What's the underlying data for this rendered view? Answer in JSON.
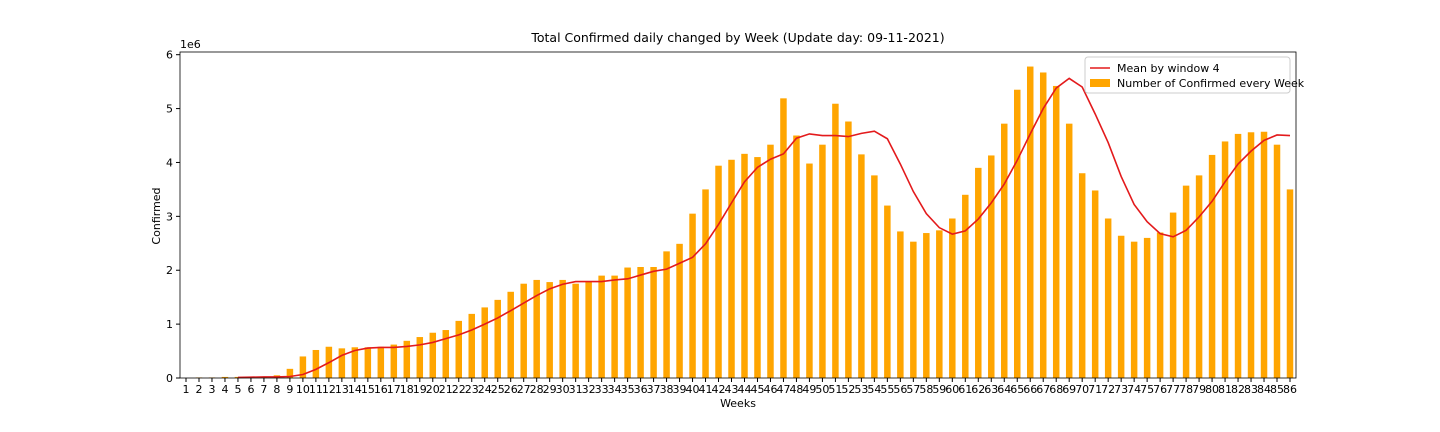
{
  "chart_data": {
    "type": "bar_line",
    "title": "Total Confirmed daily changed by Week (Update day: 09-11-2021)",
    "x_label": "Weeks",
    "y_label": "Confirmed",
    "y_offset": "1e6",
    "categories": [
      "1",
      "2",
      "3",
      "4",
      "5",
      "6",
      "7",
      "8",
      "9",
      "10",
      "11",
      "12",
      "13",
      "14",
      "15",
      "16",
      "17",
      "18",
      "19",
      "20",
      "21",
      "22",
      "23",
      "24",
      "25",
      "26",
      "27",
      "28",
      "29",
      "30",
      "31",
      "32",
      "33",
      "34",
      "35",
      "36",
      "37",
      "38",
      "39",
      "40",
      "41",
      "42",
      "43",
      "44",
      "45",
      "46",
      "47",
      "48",
      "49",
      "50",
      "51",
      "52",
      "53",
      "54",
      "55",
      "56",
      "57",
      "58",
      "59",
      "60",
      "61",
      "62",
      "63",
      "64",
      "65",
      "66",
      "67",
      "68",
      "69",
      "70",
      "71",
      "72",
      "73",
      "74",
      "75",
      "76",
      "77",
      "78",
      "79",
      "80",
      "81",
      "82",
      "83",
      "84",
      "85",
      "86"
    ],
    "series": [
      {
        "name": "Mean by window 4",
        "color": "#e31a1c",
        "kind": "line",
        "values": [
          null,
          null,
          null,
          null,
          0.01,
          0.015,
          0.02,
          0.02,
          0.028,
          0.065,
          0.16,
          0.285,
          0.42,
          0.51,
          0.555,
          0.568,
          0.568,
          0.585,
          0.615,
          0.66,
          0.73,
          0.8,
          0.89,
          1.0,
          1.115,
          1.25,
          1.39,
          1.53,
          1.655,
          1.74,
          1.79,
          1.79,
          1.79,
          1.82,
          1.84,
          1.91,
          1.98,
          2.02,
          2.13,
          2.24,
          2.49,
          2.85,
          3.25,
          3.64,
          3.91,
          4.06,
          4.16,
          4.45,
          4.53,
          4.5,
          4.5,
          4.48,
          4.54,
          4.58,
          4.44,
          3.97,
          3.46,
          3.05,
          2.79,
          2.67,
          2.73,
          2.95,
          3.25,
          3.6,
          4.04,
          4.53,
          5.0,
          5.38,
          5.56,
          5.4,
          4.9,
          4.37,
          3.74,
          3.22,
          2.9,
          2.68,
          2.62,
          2.74,
          2.99,
          3.28,
          3.64,
          3.97,
          4.21,
          4.41,
          4.51,
          4.5
        ]
      },
      {
        "name": "Number of Confirmed every Week",
        "color": "#ffa500",
        "kind": "bar",
        "values": [
          0,
          0.01,
          0.01,
          0.02,
          0.02,
          0.02,
          0.02,
          0.05,
          0.17,
          0.4,
          0.52,
          0.58,
          0.55,
          0.57,
          0.57,
          0.58,
          0.62,
          0.69,
          0.76,
          0.84,
          0.89,
          1.06,
          1.19,
          1.31,
          1.45,
          1.6,
          1.75,
          1.82,
          1.78,
          1.82,
          1.75,
          1.8,
          1.9,
          1.9,
          2.05,
          2.06,
          2.06,
          2.35,
          2.49,
          3.05,
          3.5,
          3.94,
          4.05,
          4.16,
          4.1,
          4.33,
          5.19,
          4.5,
          3.98,
          4.33,
          5.09,
          4.76,
          4.15,
          3.76,
          3.2,
          2.72,
          2.53,
          2.69,
          2.74,
          2.96,
          3.4,
          3.9,
          4.13,
          4.72,
          5.35,
          5.78,
          5.67,
          5.42,
          4.72,
          3.8,
          3.48,
          2.96,
          2.64,
          2.53,
          2.6,
          2.7,
          3.07,
          3.57,
          3.76,
          4.14,
          4.39,
          4.53,
          4.56,
          4.57,
          4.33,
          3.5
        ]
      }
    ],
    "ylim": [
      0,
      6.05
    ],
    "yticks": [
      0,
      1,
      2,
      3,
      4,
      5,
      6
    ],
    "legend": "upper right"
  }
}
